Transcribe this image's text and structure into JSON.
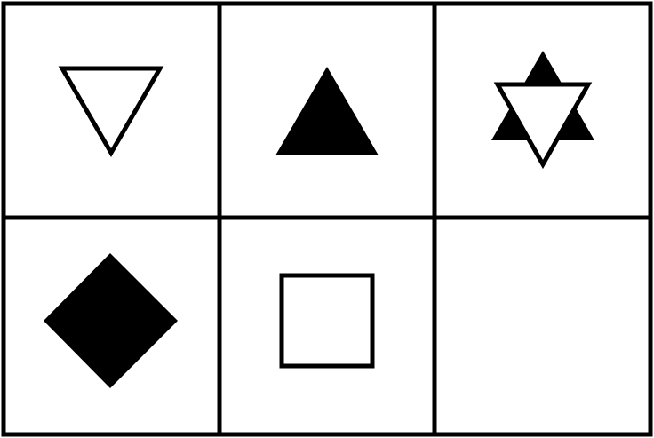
{
  "puzzle": {
    "rows": 2,
    "cols": 3,
    "colors": {
      "background": "#ffffff",
      "ink": "#000000"
    },
    "cells": [
      {
        "row": 1,
        "col": 1,
        "shape": "triangle-down",
        "fill": "outline"
      },
      {
        "row": 1,
        "col": 2,
        "shape": "triangle-up",
        "fill": "solid"
      },
      {
        "row": 1,
        "col": 3,
        "shape": "star-of-david",
        "fill": "solid-up-outline-down"
      },
      {
        "row": 2,
        "col": 1,
        "shape": "diamond",
        "fill": "solid"
      },
      {
        "row": 2,
        "col": 2,
        "shape": "square",
        "fill": "outline"
      },
      {
        "row": 2,
        "col": 3,
        "shape": "empty",
        "fill": "none"
      }
    ]
  }
}
